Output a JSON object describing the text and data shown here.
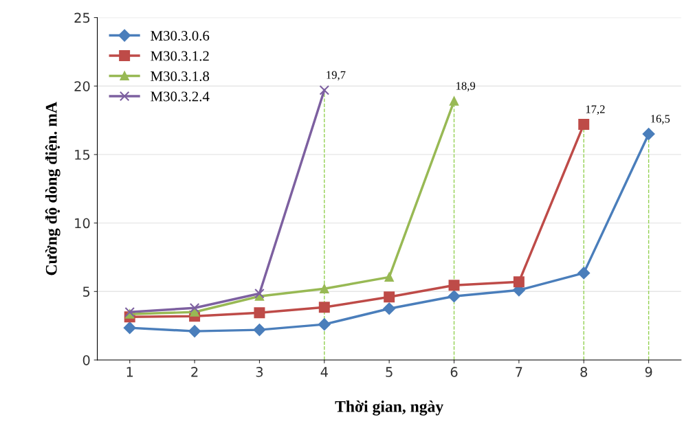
{
  "chart_data": {
    "type": "line",
    "xlabel": "Thời gian, ngày",
    "ylabel": "Cường độ dòng điện. mA",
    "categories": [
      "1",
      "2",
      "3",
      "4",
      "5",
      "6",
      "7",
      "8",
      "9"
    ],
    "series": [
      {
        "name": "M30.3.0.6",
        "color": "#4a7ebb",
        "marker": "diamond",
        "values": [
          2.35,
          2.1,
          2.2,
          2.6,
          3.75,
          4.65,
          5.1,
          6.35,
          16.5
        ],
        "value_labels": [
          null,
          null,
          null,
          null,
          null,
          null,
          null,
          null,
          "16,5"
        ]
      },
      {
        "name": "M30.3.1.2",
        "color": "#be4b48",
        "marker": "square",
        "values": [
          3.15,
          3.2,
          3.45,
          3.85,
          4.6,
          5.45,
          5.7,
          17.2,
          null
        ],
        "value_labels": [
          null,
          null,
          null,
          null,
          null,
          null,
          null,
          "17,2",
          null
        ]
      },
      {
        "name": "M30.3.1.8",
        "color": "#98b954",
        "marker": "triangle",
        "values": [
          3.35,
          3.5,
          4.65,
          5.2,
          6.05,
          18.9,
          null,
          null,
          null
        ],
        "value_labels": [
          null,
          null,
          null,
          null,
          null,
          "18,9",
          null,
          null,
          null
        ]
      },
      {
        "name": "M30.3.2.4",
        "color": "#7d60a0",
        "marker": "cross",
        "values": [
          3.5,
          3.8,
          4.85,
          19.7,
          null,
          null,
          null,
          null,
          null
        ],
        "value_labels": [
          null,
          null,
          null,
          "19,7",
          null,
          null,
          null,
          null,
          null
        ]
      }
    ],
    "ref_lines": [
      {
        "axis": "x",
        "value": "4",
        "color": "#92d050",
        "line_style": "dashed"
      },
      {
        "axis": "x",
        "value": "6",
        "color": "#92d050",
        "line_style": "dashed"
      },
      {
        "axis": "x",
        "value": "8",
        "color": "#92d050",
        "line_style": "dashed"
      },
      {
        "axis": "x",
        "value": "9",
        "color": "#92d050",
        "line_style": "dashed"
      }
    ],
    "ylim": [
      0,
      25
    ],
    "yticks": [
      0,
      5,
      10,
      15,
      20,
      25
    ],
    "grid": "y",
    "legend": "top left",
    "line_style": "solid"
  }
}
